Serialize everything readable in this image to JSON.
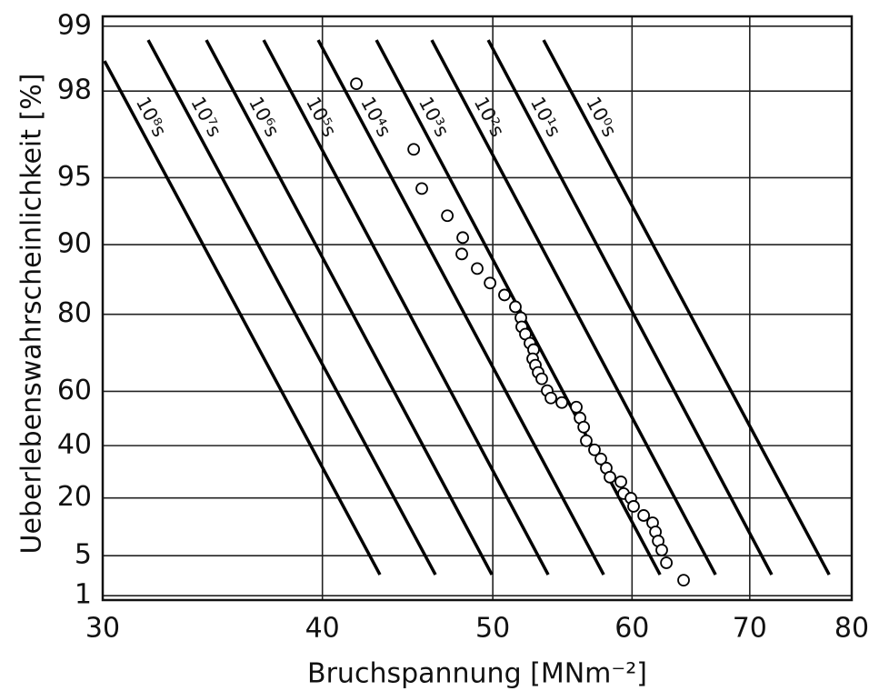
{
  "chart_data": {
    "type": "line",
    "xlabel": "Bruchspannung  [MNm⁻²]",
    "ylabel": "Ueberlebenswahrscheinlichkeit  [%]",
    "xscale": "log",
    "yscale": "weibull",
    "xlim": [
      30,
      80
    ],
    "ylim": [
      99.1,
      0.8
    ],
    "xticks": [
      30,
      40,
      50,
      60,
      70,
      80
    ],
    "yticks": [
      1,
      5,
      20,
      40,
      60,
      80,
      90,
      95,
      98,
      99
    ],
    "grid": true,
    "series": [
      {
        "name": "10⁸s",
        "type": "line",
        "color": "#000000",
        "x": [
          30.07,
          43.13
        ],
        "values": [
          98.55,
          2.54
        ]
      },
      {
        "name": "10⁷s",
        "type": "line",
        "color": "#000000",
        "x": [
          31.84,
          46.38
        ],
        "values": [
          98.84,
          2.54
        ]
      },
      {
        "name": "10⁶s",
        "type": "line",
        "color": "#000000",
        "x": [
          34.36,
          49.94
        ],
        "values": [
          98.84,
          2.54
        ]
      },
      {
        "name": "10⁵s",
        "type": "line",
        "color": "#000000",
        "x": [
          37.04,
          53.76
        ],
        "values": [
          98.84,
          2.54
        ]
      },
      {
        "name": "10⁴s",
        "type": "line",
        "color": "#000000",
        "x": [
          39.78,
          57.81
        ],
        "values": [
          98.84,
          2.54
        ]
      },
      {
        "name": "10³s",
        "type": "line",
        "color": "#000000",
        "x": [
          42.93,
          62.24
        ],
        "values": [
          98.84,
          2.54
        ]
      },
      {
        "name": "10²s",
        "type": "line",
        "color": "#000000",
        "x": [
          46.16,
          66.93
        ],
        "values": [
          98.84,
          2.54
        ]
      },
      {
        "name": "10¹s",
        "type": "line",
        "color": "#000000",
        "x": [
          49.7,
          72.04
        ],
        "values": [
          98.84,
          2.54
        ]
      },
      {
        "name": "10⁰s",
        "type": "line",
        "color": "#000000",
        "x": [
          53.44,
          77.67
        ],
        "values": [
          98.84,
          2.54
        ]
      },
      {
        "type": "scatter",
        "color": "#000000",
        "x": [
          41.82,
          45.08,
          45.56,
          47.11,
          48.07,
          48.01,
          48.99,
          49.82,
          50.77,
          51.5,
          51.87,
          51.93,
          52.18,
          52.49,
          52.74,
          52.68,
          52.87,
          53.06,
          53.31,
          53.69,
          53.95,
          54.73,
          55.78,
          56.05,
          56.32,
          56.51,
          57.12,
          57.6,
          58.01,
          58.29,
          59.13,
          59.34,
          59.91,
          60.12,
          60.92,
          61.64,
          61.87,
          62.09,
          62.38,
          62.76,
          64.19
        ],
        "values": [
          98.15,
          96.29,
          94.4,
          92.57,
          90.69,
          89.0,
          87.25,
          85.27,
          83.43,
          81.4,
          79.33,
          77.46,
          75.87,
          73.75,
          72.16,
          69.77,
          68.0,
          65.91,
          63.98,
          60.22,
          57.76,
          56.19,
          54.59,
          50.64,
          47.21,
          41.92,
          38.33,
          34.73,
          31.14,
          27.62,
          25.86,
          21.53,
          19.93,
          17.18,
          14.33,
          12.22,
          9.84,
          7.75,
          5.96,
          3.94,
          2.03
        ]
      }
    ]
  }
}
